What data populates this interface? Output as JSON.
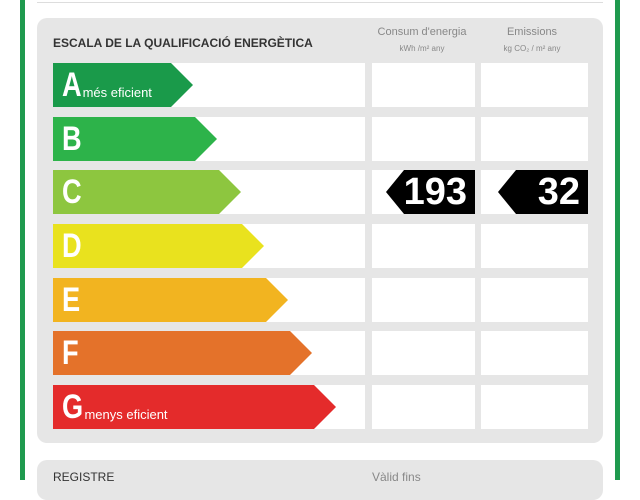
{
  "title": "ESCALA DE LA QUALIFICACIÓ ENERGÈTICA",
  "columns": [
    {
      "label": "Consum d'energia",
      "unit": "kWh /m² any"
    },
    {
      "label": "Emissions",
      "unit": "kg CO₂ / m² any"
    }
  ],
  "ratings": [
    {
      "letter": "A",
      "desc": "més eficient",
      "color": "#1a9a4a"
    },
    {
      "letter": "B",
      "desc": "",
      "color": "#2db34a"
    },
    {
      "letter": "C",
      "desc": "",
      "color": "#8dc63f"
    },
    {
      "letter": "D",
      "desc": "",
      "color": "#e9e21e"
    },
    {
      "letter": "E",
      "desc": "",
      "color": "#f2b420"
    },
    {
      "letter": "F",
      "desc": "",
      "color": "#e4722a"
    },
    {
      "letter": "G",
      "desc": "menys eficient",
      "color": "#e42b2b"
    }
  ],
  "current_rating": "C",
  "energy_consumption": "193",
  "emissions": "32",
  "next_section": {
    "label": "REGISTRE",
    "right": "Vàlid fins"
  }
}
